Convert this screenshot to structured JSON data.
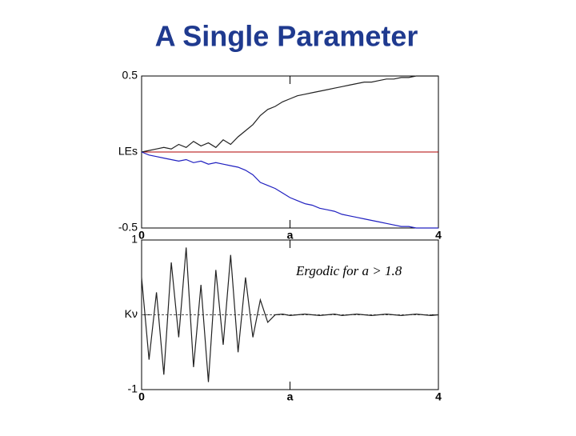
{
  "title": "A Single Parameter",
  "chart_data": [
    {
      "type": "line",
      "x": [
        0,
        0.1,
        0.2,
        0.3,
        0.4,
        0.5,
        0.6,
        0.7,
        0.8,
        0.9,
        1.0,
        1.1,
        1.2,
        1.3,
        1.4,
        1.5,
        1.6,
        1.7,
        1.8,
        1.9,
        2.0,
        2.1,
        2.2,
        2.3,
        2.4,
        2.5,
        2.6,
        2.7,
        2.8,
        2.9,
        3.0,
        3.1,
        3.2,
        3.3,
        3.4,
        3.5,
        3.6,
        3.7,
        3.8,
        3.9,
        4.0
      ],
      "series": [
        {
          "color": "#222222",
          "values": [
            0,
            0.01,
            0.02,
            0.03,
            0.02,
            0.05,
            0.03,
            0.07,
            0.04,
            0.06,
            0.03,
            0.08,
            0.05,
            0.1,
            0.14,
            0.18,
            0.24,
            0.28,
            0.3,
            0.33,
            0.35,
            0.37,
            0.38,
            0.39,
            0.4,
            0.41,
            0.42,
            0.43,
            0.44,
            0.45,
            0.46,
            0.46,
            0.47,
            0.48,
            0.48,
            0.49,
            0.49,
            0.5,
            0.5,
            0.5,
            0.5
          ]
        },
        {
          "color": "#2020c0",
          "values": [
            0,
            -0.02,
            -0.03,
            -0.04,
            -0.05,
            -0.06,
            -0.05,
            -0.07,
            -0.06,
            -0.08,
            -0.07,
            -0.08,
            -0.09,
            -0.1,
            -0.12,
            -0.15,
            -0.2,
            -0.22,
            -0.24,
            -0.27,
            -0.3,
            -0.32,
            -0.34,
            -0.35,
            -0.37,
            -0.38,
            -0.39,
            -0.41,
            -0.42,
            -0.43,
            -0.44,
            -0.45,
            -0.46,
            -0.47,
            -0.48,
            -0.49,
            -0.49,
            -0.5,
            -0.5,
            -0.5,
            -0.5
          ]
        }
      ],
      "hline": {
        "value": 0,
        "color": "#b00000"
      },
      "xlim": [
        0,
        4
      ],
      "xticks": [
        0,
        {
          "value": 2,
          "label": "a"
        },
        4
      ],
      "ylim": [
        -0.5,
        0.5
      ],
      "yticks": [
        0.5,
        {
          "value": 0,
          "label": "LEs"
        },
        -0.5
      ]
    },
    {
      "type": "line",
      "annotation": "Ergodic for a > 1.8",
      "x": [
        0,
        0.1,
        0.2,
        0.3,
        0.4,
        0.5,
        0.6,
        0.7,
        0.8,
        0.9,
        1.0,
        1.1,
        1.2,
        1.3,
        1.4,
        1.5,
        1.6,
        1.7,
        1.8,
        1.9,
        2.0,
        2.1,
        2.2,
        2.3,
        2.4,
        2.5,
        2.6,
        2.7,
        2.8,
        2.9,
        3.0,
        3.1,
        3.2,
        3.3,
        3.4,
        3.5,
        3.6,
        3.7,
        3.8,
        3.9,
        4.0
      ],
      "series": [
        {
          "color": "#222222",
          "values": [
            0.5,
            -0.6,
            0.3,
            -0.8,
            0.7,
            -0.3,
            0.9,
            -0.7,
            0.4,
            -0.9,
            0.6,
            -0.4,
            0.8,
            -0.5,
            0.5,
            -0.3,
            0.2,
            -0.1,
            0,
            0.01,
            -0.01,
            0,
            0.01,
            0,
            -0.01,
            0,
            0.01,
            -0.01,
            0,
            0.01,
            0,
            -0.01,
            0,
            0.01,
            0,
            -0.01,
            0,
            0.01,
            0,
            -0.01,
            0
          ]
        }
      ],
      "hline": {
        "value": 0,
        "color": "#555555"
      },
      "xlim": [
        0,
        4
      ],
      "xticks": [
        0,
        {
          "value": 2,
          "label": "a"
        },
        4
      ],
      "ylim": [
        -1,
        1
      ],
      "yticks": [
        1,
        {
          "value": 0,
          "label": "Kν"
        },
        -1
      ]
    }
  ]
}
